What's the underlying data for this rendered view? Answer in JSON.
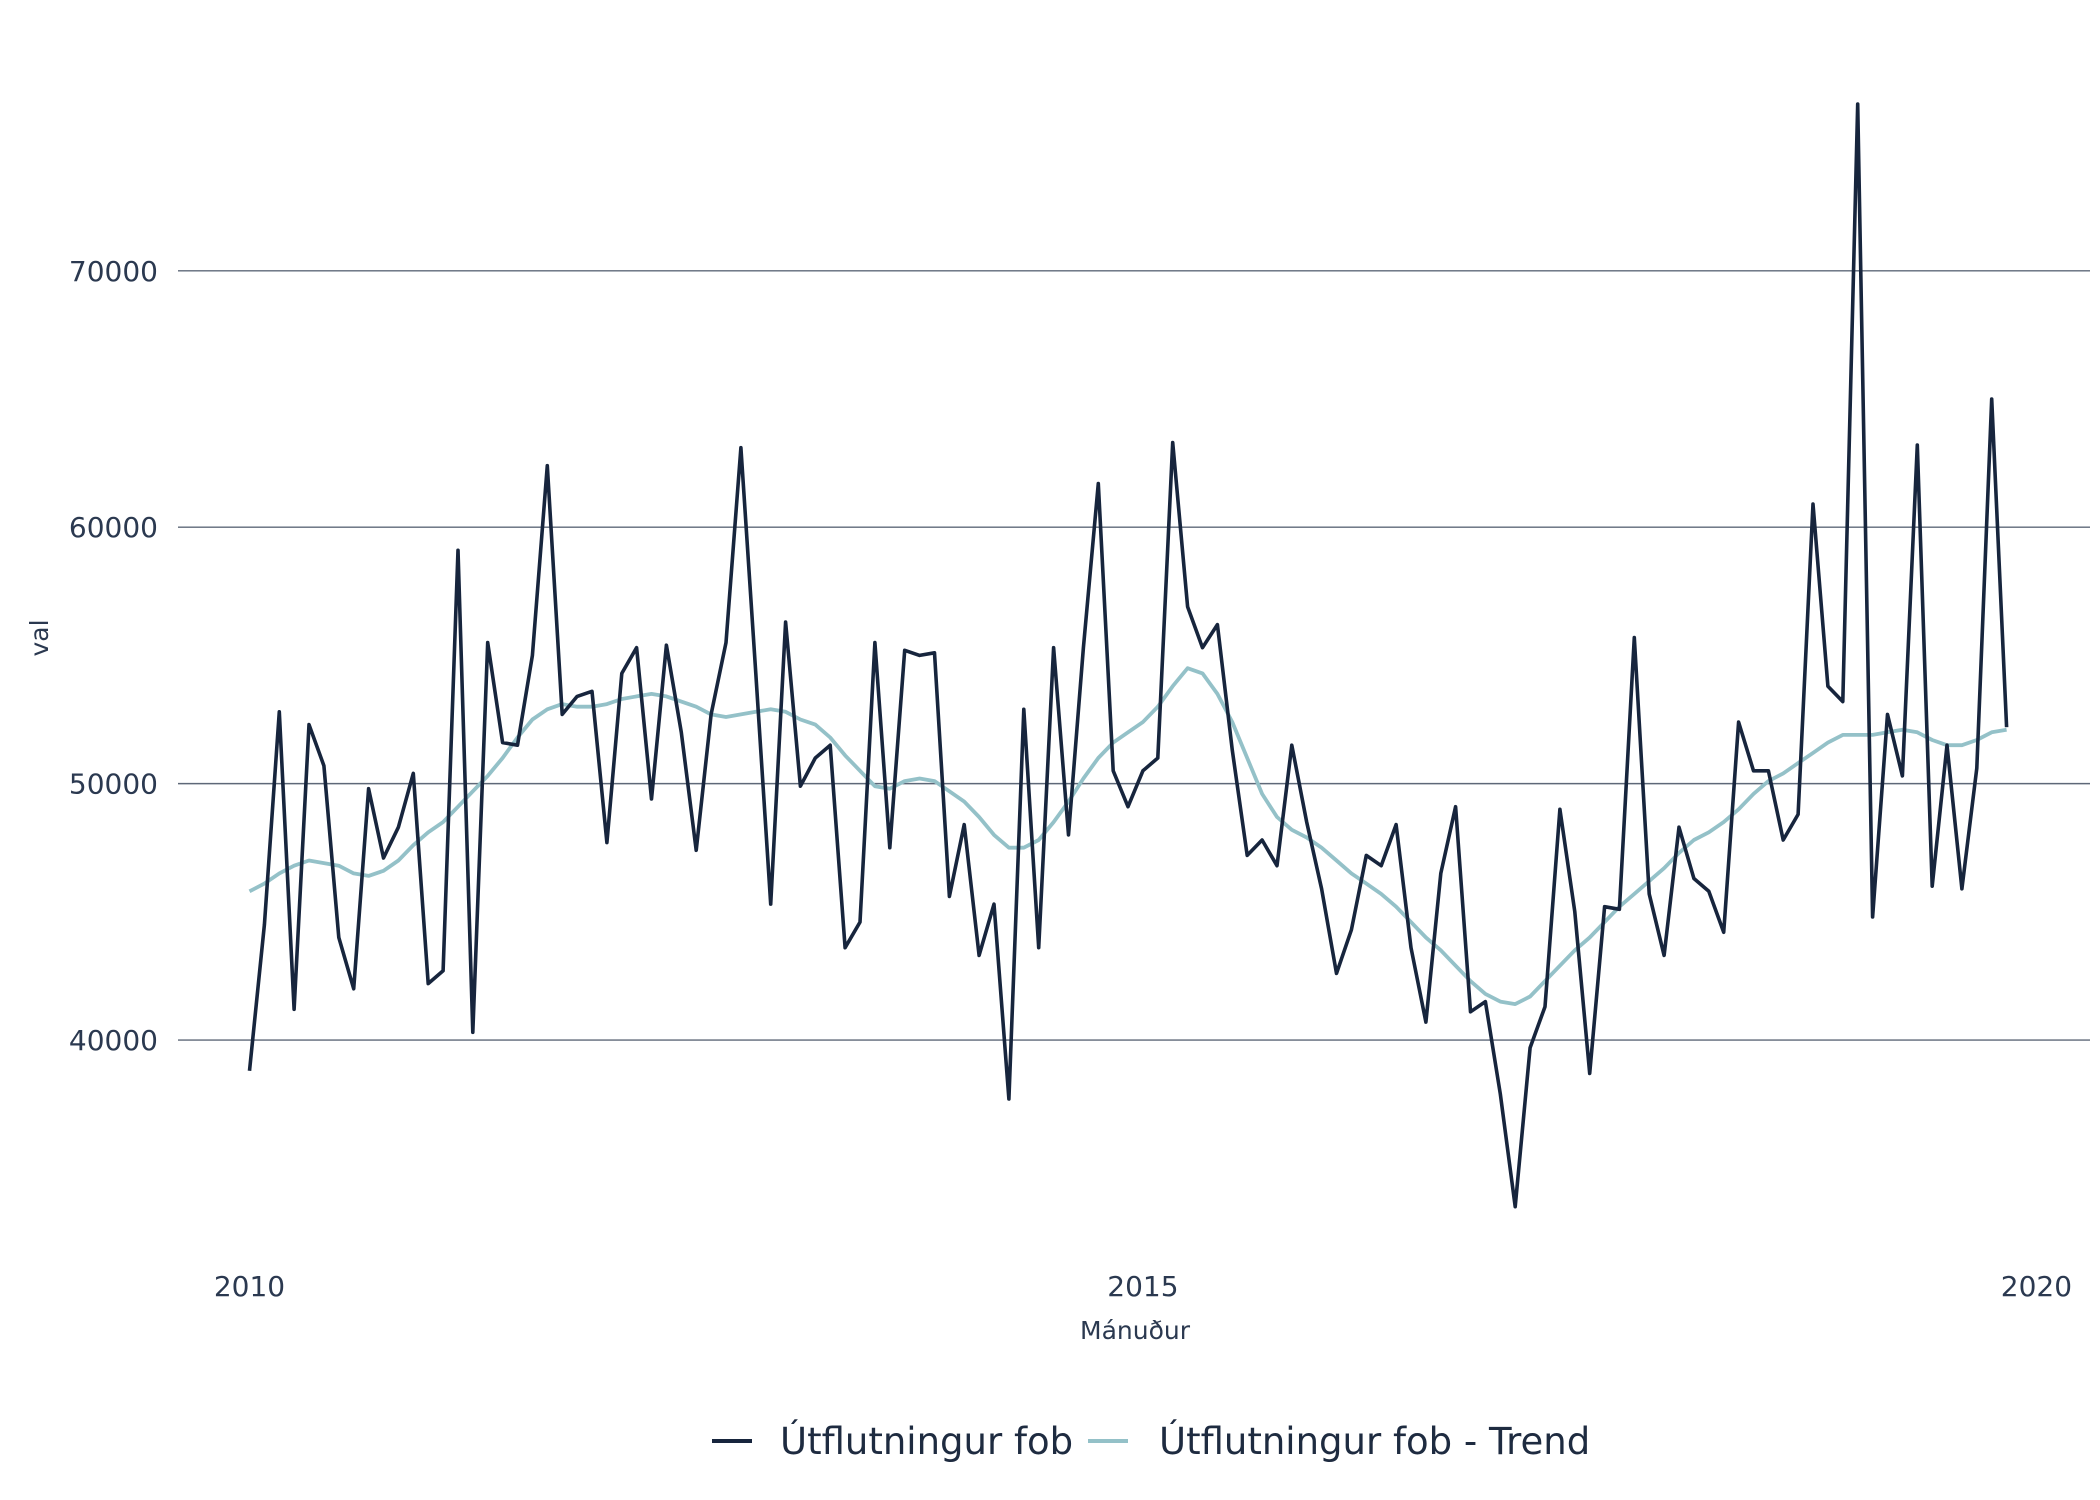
{
  "chart_data": {
    "type": "line",
    "title": "",
    "xlabel": "Mánuður",
    "ylabel": "val",
    "xlim": [
      2009.6,
      2020.3
    ],
    "ylim": [
      31500,
      79000
    ],
    "x_ticks": [
      2010,
      2015,
      2020
    ],
    "x_tick_labels": [
      "2010",
      "2015",
      "2020"
    ],
    "y_ticks": [
      40000,
      50000,
      60000,
      70000
    ],
    "y_tick_labels": [
      "40000",
      "50000",
      "60000",
      "70000"
    ],
    "grid": true,
    "legend": "bottom",
    "x_start": 2010.0,
    "x_step_months": 1,
    "series": [
      {
        "name": "Útflutningur fob",
        "color": "#17253d",
        "values": [
          38800,
          44500,
          52800,
          41200,
          52300,
          50700,
          44000,
          42000,
          49800,
          47100,
          48300,
          50400,
          42200,
          42700,
          59100,
          40300,
          55500,
          51600,
          51500,
          55000,
          62400,
          52700,
          53400,
          53600,
          47700,
          54300,
          55300,
          49400,
          55400,
          52000,
          47400,
          52700,
          55500,
          63100,
          54300,
          45300,
          56300,
          49900,
          51000,
          51500,
          43600,
          44600,
          55500,
          47500,
          55200,
          55000,
          55100,
          45600,
          48400,
          43300,
          45300,
          37700,
          52900,
          43600,
          55300,
          48000,
          55300,
          61700,
          50500,
          49100,
          50500,
          51000,
          63300,
          56900,
          55300,
          56200,
          51300,
          47200,
          47800,
          46800,
          51500,
          48500,
          45900,
          42600,
          44300,
          47200,
          46800,
          48400,
          43600,
          40700,
          46500,
          49100,
          41100,
          41500,
          37900,
          33500,
          39700,
          41300,
          49000,
          45000,
          38700,
          45200,
          45100,
          55700,
          45700,
          43300,
          48300,
          46300,
          45800,
          44200,
          52400,
          50500,
          50500,
          47800,
          48800,
          60900,
          53800,
          53200,
          76500,
          44800,
          52700,
          50300,
          63200,
          46000,
          51500,
          45900,
          50600,
          65000,
          52200
        ]
      },
      {
        "name": "Útflutningur fob - Trend",
        "color": "#94c1c8",
        "values": [
          45800,
          46100,
          46500,
          46800,
          47000,
          46900,
          46800,
          46500,
          46400,
          46600,
          47000,
          47600,
          48100,
          48500,
          49100,
          49700,
          50300,
          51000,
          51800,
          52500,
          52900,
          53100,
          53000,
          53000,
          53100,
          53300,
          53400,
          53500,
          53400,
          53200,
          53000,
          52700,
          52600,
          52700,
          52800,
          52900,
          52800,
          52500,
          52300,
          51800,
          51100,
          50500,
          49900,
          49800,
          50100,
          50200,
          50100,
          49700,
          49300,
          48700,
          48000,
          47500,
          47500,
          47800,
          48500,
          49300,
          50200,
          51000,
          51600,
          52000,
          52400,
          53000,
          53800,
          54500,
          54300,
          53500,
          52400,
          51000,
          49600,
          48700,
          48200,
          47900,
          47500,
          47000,
          46500,
          46100,
          45700,
          45200,
          44600,
          44000,
          43500,
          42900,
          42300,
          41800,
          41500,
          41400,
          41700,
          42300,
          42900,
          43500,
          44000,
          44600,
          45200,
          45700,
          46200,
          46700,
          47300,
          47800,
          48100,
          48500,
          49000,
          49600,
          50100,
          50400,
          50800,
          51200,
          51600,
          51900,
          51900,
          51900,
          52000,
          52100,
          52000,
          51700,
          51500,
          51500,
          51700,
          52000,
          52100
        ]
      }
    ]
  }
}
